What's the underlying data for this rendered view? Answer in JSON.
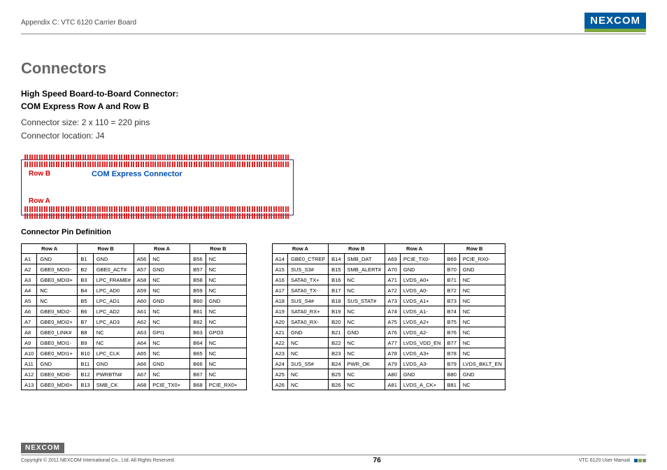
{
  "header": {
    "appendix": "Appendix C: VTC 6120 Carrier Board",
    "logo": "NEXCOM"
  },
  "title": "Connectors",
  "subtitle1": "High Speed Board-to-Board Connector:",
  "subtitle2": "COM Express Row A and Row B",
  "desc1": "Connector size: 2 x 110 = 220 pins",
  "desc2": "Connector location: J4",
  "diagram": {
    "rowb": "Row B",
    "rowa": "Row A",
    "center": "COM Express Connector"
  },
  "pindef_label": "Connector Pin Definition",
  "th": {
    "rowa": "Row A",
    "rowb": "Row B"
  },
  "table1": [
    [
      "A1",
      "GND",
      "B1",
      "GND",
      "A56",
      "NC",
      "B56",
      "NC"
    ],
    [
      "A2",
      "GBE0_MDI3-",
      "B2",
      "GBE0_ACT#",
      "A57",
      "GND",
      "B57",
      "NC"
    ],
    [
      "A3",
      "GBE0_MDI3+",
      "B3",
      "LPC_FRAME#",
      "A58",
      "NC",
      "B58",
      "NC"
    ],
    [
      "A4",
      "NC",
      "B4",
      "LPC_AD0",
      "A59",
      "NC",
      "B59",
      "NC"
    ],
    [
      "A5",
      "NC",
      "B5",
      "LPC_AD1",
      "A60",
      "GND",
      "B60",
      "GND"
    ],
    [
      "A6",
      "GBE0_MDI2-",
      "B6",
      "LPC_AD2",
      "A61",
      "NC",
      "B61",
      "NC"
    ],
    [
      "A7",
      "GBE0_MDI2+",
      "B7",
      "LPC_AD3",
      "A62",
      "NC",
      "B62",
      "NC"
    ],
    [
      "A8",
      "GBE0_LINK#",
      "B8",
      "NC",
      "A63",
      "GPI1",
      "B63",
      "GPO3"
    ],
    [
      "A9",
      "GBE0_MDI1-",
      "B9",
      "NC",
      "A64",
      "NC",
      "B64",
      "NC"
    ],
    [
      "A10",
      "GBE0_MDI1+",
      "B10",
      "LPC_CLK",
      "A65",
      "NC",
      "B65",
      "NC"
    ],
    [
      "A11",
      "GND",
      "B11",
      "GND",
      "A66",
      "GND",
      "B66",
      "NC"
    ],
    [
      "A12",
      "GBE0_MDI0-",
      "B12",
      "PWRBTN#",
      "A67",
      "NC",
      "B67",
      "NC"
    ],
    [
      "A13",
      "GBE0_MDI0+",
      "B13",
      "SMB_CK",
      "A68",
      "PCIE_TX0+",
      "B68",
      "PCIE_RX0+"
    ]
  ],
  "table2": [
    [
      "A14",
      "GBE0_CTREF",
      "B14",
      "SMB_DAT",
      "A69",
      "PCIE_TX0-",
      "B69",
      "PCIE_RX0-"
    ],
    [
      "A15",
      "SUS_S3#",
      "B15",
      "SMB_ALERT#",
      "A70",
      "GND",
      "B70",
      "GND"
    ],
    [
      "A16",
      "SATA0_TX+",
      "B16",
      "NC",
      "A71",
      "LVDS_A0+",
      "B71",
      "NC"
    ],
    [
      "A17",
      "SATA0_TX-",
      "B17",
      "NC",
      "A72",
      "LVDS_A0-",
      "B72",
      "NC"
    ],
    [
      "A18",
      "SUS_S4#",
      "B18",
      "SUS_STAT#",
      "A73",
      "LVDS_A1+",
      "B73",
      "NC"
    ],
    [
      "A19",
      "SATA0_RX+",
      "B19",
      "NC",
      "A74",
      "LVDS_A1-",
      "B74",
      "NC"
    ],
    [
      "A20",
      "SATA0_RX-",
      "B20",
      "NC",
      "A75",
      "LVDS_A2+",
      "B75",
      "NC"
    ],
    [
      "A21",
      "GND",
      "B21",
      "GND",
      "A76",
      "LVDS_A2-",
      "B76",
      "NC"
    ],
    [
      "A22",
      "NC",
      "B22",
      "NC",
      "A77",
      "LVDS_VDD_EN",
      "B77",
      "NC"
    ],
    [
      "A23",
      "NC",
      "B23",
      "NC",
      "A78",
      "LVDS_A3+",
      "B78",
      "NC"
    ],
    [
      "A24",
      "SUS_S5#",
      "B24",
      "PWR_OK",
      "A79",
      "LVDS_A3-",
      "B79",
      "LVDS_BKLT_EN"
    ],
    [
      "A25",
      "NC",
      "B25",
      "NC",
      "A80",
      "GND",
      "B80",
      "GND"
    ],
    [
      "A26",
      "NC",
      "B26",
      "NC",
      "A81",
      "LVDS_A_CK+",
      "B81",
      "NC"
    ]
  ],
  "footer": {
    "logo": "NEXCOM",
    "copyright": "Copyright © 2011 NEXCOM International Co., Ltd. All Rights Reserved.",
    "page": "76",
    "manual": "VTC 6120 User Manual"
  }
}
